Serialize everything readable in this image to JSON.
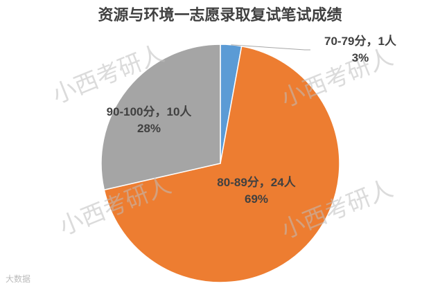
{
  "chart_data": {
    "type": "pie",
    "title": "资源与环境一志愿录取复试笔试成绩",
    "categories": [
      "70-79分",
      "80-89分",
      "90-100分"
    ],
    "values": [
      1,
      24,
      10
    ],
    "value_labels": [
      "1人",
      "24人",
      "10人"
    ],
    "label_separator": "，",
    "percentages": [
      3,
      69,
      28
    ],
    "percentage_labels": [
      "3%",
      "69%",
      "28%"
    ],
    "colors": [
      "#5b9bd5",
      "#ed7d31",
      "#a5a5a5"
    ],
    "watermark": "小西考研人",
    "logo_text": "大数据"
  }
}
